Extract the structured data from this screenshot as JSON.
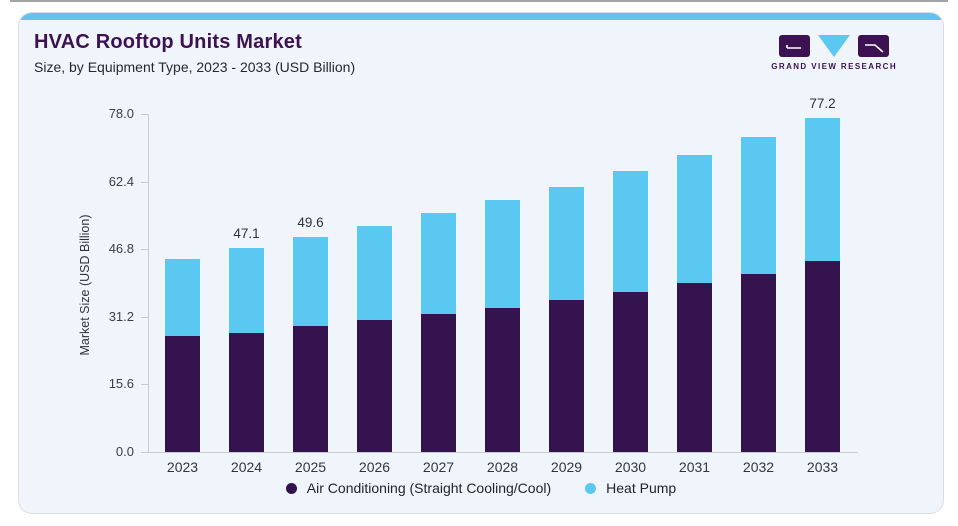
{
  "header": {
    "title": "HVAC Rooftop Units Market",
    "subtitle": "Size, by Equipment Type, 2023 - 2033 (USD Billion)"
  },
  "brand": {
    "name": "GRAND VIEW RESEARCH",
    "purple": "#3d1252",
    "blue": "#5bc8f2"
  },
  "chart_data": {
    "type": "bar",
    "stacked": true,
    "title": "HVAC Rooftop Units Market",
    "subtitle": "Size, by Equipment Type, 2023 - 2033 (USD Billion)",
    "categories": [
      "2023",
      "2024",
      "2025",
      "2026",
      "2027",
      "2028",
      "2029",
      "2030",
      "2031",
      "2032",
      "2033"
    ],
    "series": [
      {
        "name": "Air Conditioning (Straight Cooling/Cool)",
        "color": "#33124e",
        "values": [
          26.7,
          27.6,
          29.0,
          30.4,
          31.8,
          33.3,
          35.0,
          37.0,
          39.0,
          41.1,
          44.0
        ]
      },
      {
        "name": "Heat Pump",
        "color": "#5bc8f2",
        "values": [
          17.9,
          19.5,
          20.6,
          21.7,
          23.3,
          24.9,
          26.3,
          28.0,
          29.7,
          31.6,
          33.2
        ]
      }
    ],
    "totals": [
      44.6,
      47.1,
      49.6,
      52.1,
      55.1,
      58.2,
      61.3,
      65.0,
      68.7,
      72.7,
      77.2
    ],
    "bar_total_labels": [
      "",
      "47.1",
      "49.6",
      "",
      "",
      "",
      "",
      "",
      "",
      "",
      "77.2"
    ],
    "ylabel": "Market Size (USD Billion)",
    "yticks": [
      "78.0",
      "62.4",
      "46.8",
      "31.2",
      "15.6",
      "0.0"
    ],
    "ylim": [
      0,
      78
    ],
    "grid": false,
    "legend_position": "bottom",
    "legend": [
      {
        "label": "Air Conditioning (Straight Cooling/Cool)",
        "color": "#33124e"
      },
      {
        "label": "Heat Pump",
        "color": "#5bc8f2"
      }
    ]
  },
  "colors": {
    "accent_bar": "#62c4ec",
    "card_bg": "#eff5fa",
    "title_purple": "#3d1252",
    "axis_line": "#c6ccd2"
  }
}
